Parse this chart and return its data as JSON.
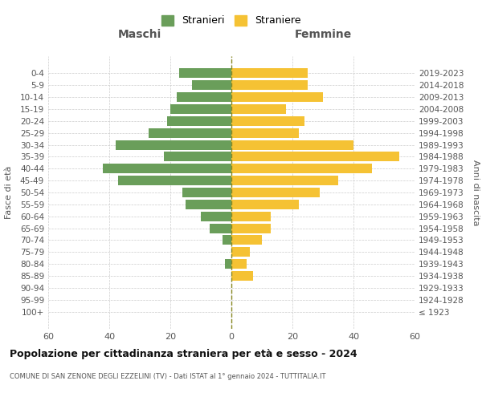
{
  "age_groups": [
    "100+",
    "95-99",
    "90-94",
    "85-89",
    "80-84",
    "75-79",
    "70-74",
    "65-69",
    "60-64",
    "55-59",
    "50-54",
    "45-49",
    "40-44",
    "35-39",
    "30-34",
    "25-29",
    "20-24",
    "15-19",
    "10-14",
    "5-9",
    "0-4"
  ],
  "birth_years": [
    "≤ 1923",
    "1924-1928",
    "1929-1933",
    "1934-1938",
    "1939-1943",
    "1944-1948",
    "1949-1953",
    "1954-1958",
    "1959-1963",
    "1964-1968",
    "1969-1973",
    "1974-1978",
    "1979-1983",
    "1984-1988",
    "1989-1993",
    "1994-1998",
    "1999-2003",
    "2004-2008",
    "2009-2013",
    "2014-2018",
    "2019-2023"
  ],
  "males": [
    0,
    0,
    0,
    0,
    2,
    0,
    3,
    7,
    10,
    15,
    16,
    37,
    42,
    22,
    38,
    27,
    21,
    20,
    18,
    13,
    17
  ],
  "females": [
    0,
    0,
    0,
    7,
    5,
    6,
    10,
    13,
    13,
    22,
    29,
    35,
    46,
    55,
    40,
    22,
    24,
    18,
    30,
    25,
    25
  ],
  "male_color": "#6a9e5a",
  "female_color": "#f5c234",
  "background_color": "#ffffff",
  "grid_color": "#cccccc",
  "title": "Popolazione per cittadinanza straniera per età e sesso - 2024",
  "subtitle": "COMUNE DI SAN ZENONE DEGLI EZZELINI (TV) - Dati ISTAT al 1° gennaio 2024 - TUTTITALIA.IT",
  "xlabel_left": "Maschi",
  "xlabel_right": "Femmine",
  "ylabel_left": "Fasce di età",
  "ylabel_right": "Anni di nascita",
  "legend_male": "Stranieri",
  "legend_female": "Straniere",
  "xlim": 60,
  "tick_step": 20
}
